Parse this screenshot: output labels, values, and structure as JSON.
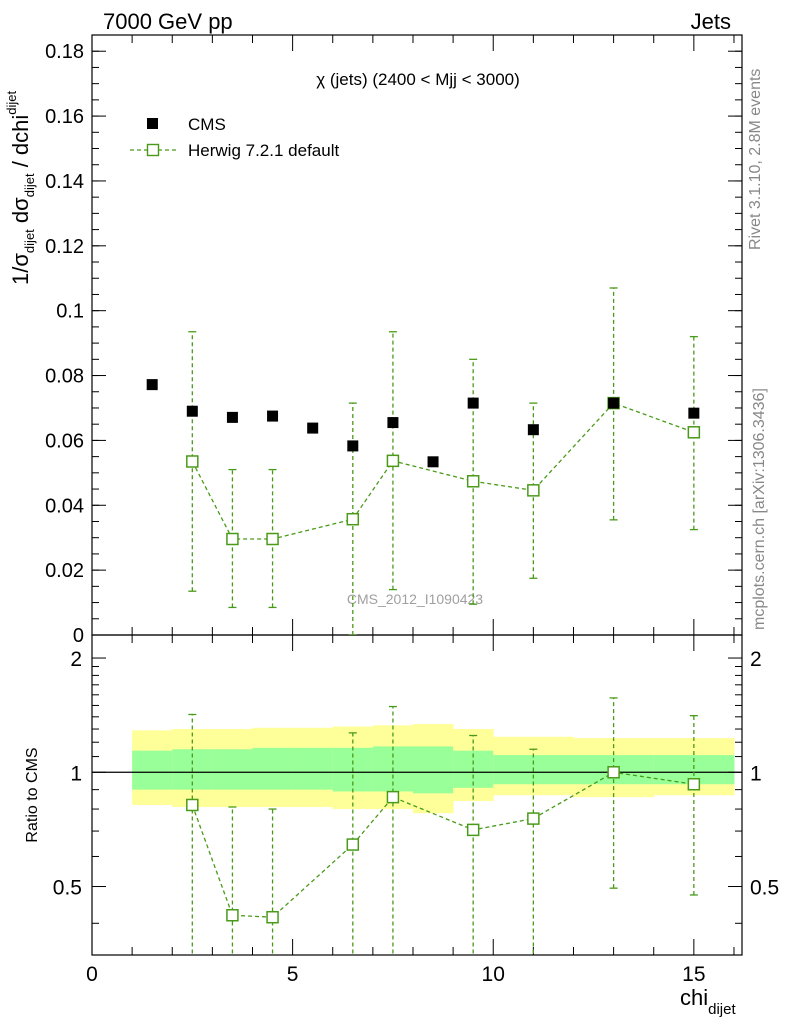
{
  "header": {
    "left_title": "7000 GeV pp",
    "right_title": "Jets"
  },
  "side_labels": {
    "rivet": "Rivet 3.1.10,  2.8M events",
    "mcplots": "mcplots.cern.ch [arXiv:1306.3436]"
  },
  "watermark": "CMS_2012_I1090423",
  "chart_data": [
    {
      "type": "scatter",
      "panel": "main",
      "title": "χ (jets) (2400 < Mjj < 3000)",
      "ylabel_main": "1/σ",
      "ylabel_sub1": "dijet",
      "ylabel_mid": " dσ",
      "ylabel_sub2": "dijet",
      "ylabel_tail": " / dchi",
      "ylabel_sub3": "dijet",
      "xlim": [
        0,
        16.2
      ],
      "ylim": [
        0,
        0.185
      ],
      "y_ticks": [
        0,
        0.02,
        0.04,
        0.06,
        0.08,
        0.1,
        0.12,
        0.14,
        0.16,
        0.18
      ],
      "y_tick_labels": [
        "0",
        "0.02",
        "0.04",
        "0.06",
        "0.08",
        "0.1",
        "0.12",
        "0.14",
        "0.16",
        "0.18"
      ],
      "legend": {
        "placement": "top-left"
      },
      "series": [
        {
          "name": "CMS",
          "style": "black-square",
          "color": "#000000",
          "x": [
            1.5,
            2.5,
            3.5,
            4.5,
            5.5,
            6.5,
            7.5,
            8.5,
            9.5,
            11,
            13,
            15
          ],
          "y": [
            0.0772,
            0.069,
            0.0671,
            0.0675,
            0.0638,
            0.0583,
            0.0655,
            0.0534,
            0.0715,
            0.0633,
            0.0715,
            0.0684
          ]
        },
        {
          "name": "Herwig 7.2.1 default",
          "style": "green-open-square-dashed",
          "color": "#4a9a1a",
          "x": [
            2.5,
            3.5,
            4.5,
            6.5,
            7.5,
            9.5,
            11,
            13,
            15
          ],
          "y": [
            0.0535,
            0.0296,
            0.0296,
            0.0357,
            0.0537,
            0.0474,
            0.0446,
            0.0715,
            0.0625
          ],
          "y_low": [
            0.0135,
            0.0085,
            0.0085,
            0.0,
            0.014,
            0.0095,
            0.0175,
            0.0355,
            0.0325
          ],
          "y_high": [
            0.0935,
            0.051,
            0.051,
            0.0715,
            0.0935,
            0.085,
            0.0715,
            0.107,
            0.092
          ]
        }
      ]
    },
    {
      "type": "scatter",
      "panel": "ratio",
      "ylabel": "Ratio to CMS",
      "xlabel_main": "chi",
      "xlabel_sub": "dijet",
      "xlim": [
        0,
        16.2
      ],
      "ylim": [
        0.33,
        2.3
      ],
      "y_ticks": [
        0.5,
        1,
        2
      ],
      "y_tick_labels": [
        "0.5",
        "1",
        "2"
      ],
      "x_ticks": [
        0,
        5,
        10,
        15
      ],
      "x_tick_labels": [
        "0",
        "5",
        "10",
        "15"
      ],
      "bands": {
        "x_edges": [
          1,
          2,
          3,
          4,
          5,
          6,
          7,
          8,
          9,
          10,
          12,
          14,
          16
        ],
        "yellow_low": [
          0.82,
          0.81,
          0.81,
          0.81,
          0.81,
          0.8,
          0.8,
          0.78,
          0.84,
          0.87,
          0.86,
          0.87
        ],
        "yellow_high": [
          1.29,
          1.3,
          1.3,
          1.31,
          1.31,
          1.32,
          1.33,
          1.34,
          1.3,
          1.24,
          1.23,
          1.23
        ],
        "green_low": [
          0.9,
          0.9,
          0.9,
          0.9,
          0.9,
          0.89,
          0.89,
          0.88,
          0.91,
          0.93,
          0.93,
          0.93
        ],
        "green_high": [
          1.14,
          1.15,
          1.15,
          1.16,
          1.16,
          1.16,
          1.17,
          1.17,
          1.14,
          1.11,
          1.11,
          1.11
        ],
        "yellow_color": "#ffff99",
        "green_color": "#99ff99"
      },
      "series": [
        {
          "name": "Herwig 7.2.1 default",
          "color": "#4a9a1a",
          "x": [
            2.5,
            3.5,
            4.5,
            6.5,
            7.5,
            9.5,
            11,
            13,
            15
          ],
          "y": [
            0.82,
            0.42,
            0.415,
            0.645,
            0.86,
            0.705,
            0.755,
            1.0,
            0.93
          ],
          "y_low": [
            0.2,
            0.2,
            0.2,
            0.2,
            0.2,
            0.2,
            0.2,
            0.495,
            0.475
          ],
          "y_high": [
            1.42,
            0.81,
            0.8,
            1.27,
            1.49,
            1.25,
            1.15,
            1.57,
            1.41
          ]
        }
      ]
    }
  ]
}
